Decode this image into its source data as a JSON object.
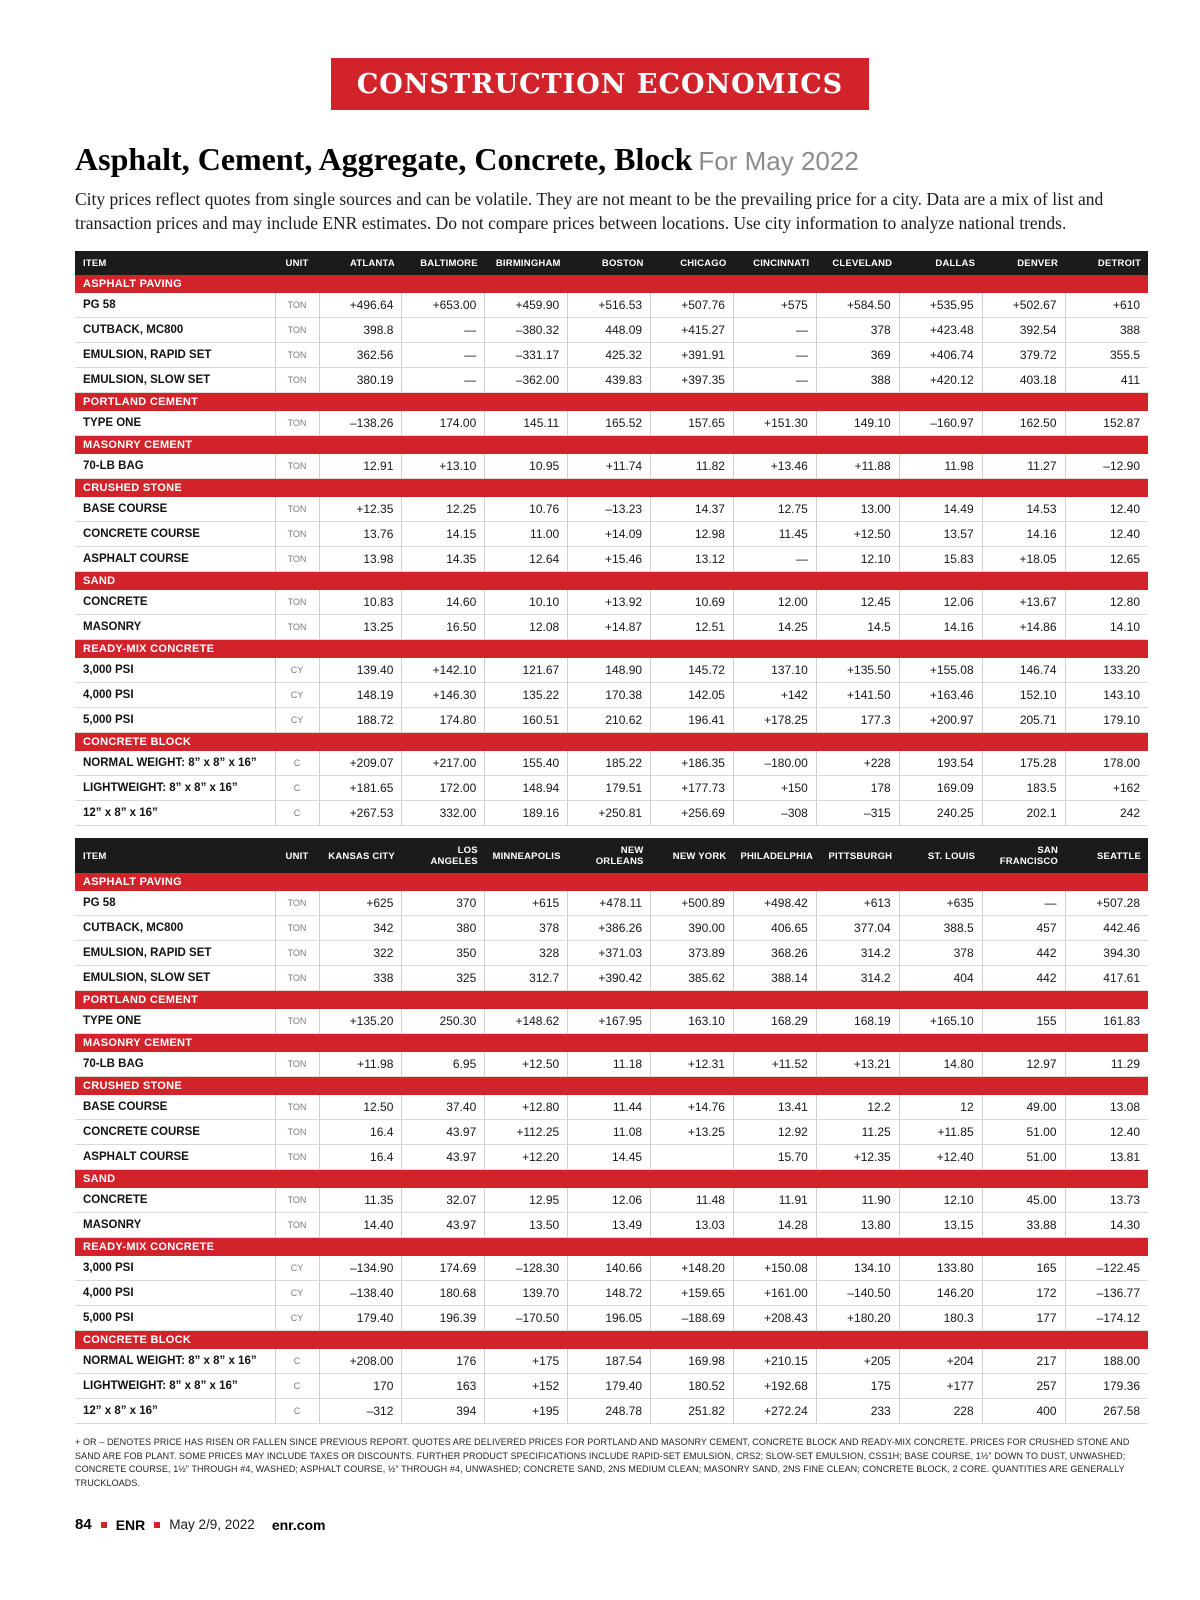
{
  "colors": {
    "accent": "#d2232a",
    "table_header_bg": "#1b1b1b"
  },
  "page": {
    "banner": "CONSTRUCTION ECONOMICS",
    "title": "Asphalt, Cement, Aggregate, Concrete, Block",
    "subtitle": "For May 2022",
    "intro": "City prices reflect quotes from single sources and can be volatile. They are not meant to be the prevailing price for a city. Data are a mix of list and transaction prices and may include ENR estimates. Do not compare prices between locations. Use city information to analyze national trends.",
    "footnote": "+ OR – DENOTES PRICE HAS RISEN OR FALLEN SINCE PREVIOUS REPORT. QUOTES ARE DELIVERED PRICES FOR PORTLAND AND MASONRY CEMENT, CONCRETE BLOCK AND READY-MIX CONCRETE. PRICES FOR CRUSHED STONE AND SAND ARE FOB PLANT. SOME PRICES MAY INCLUDE TAXES OR DISCOUNTS. FURTHER PRODUCT SPECIFICATIONS INCLUDE RAPID-SET EMULSION, CRS2; SLOW-SET EMULSION, CSS1H; BASE COURSE, 1½” DOWN TO DUST, UNWASHED; CONCRETE COURSE, 1½” THROUGH #4, WASHED; ASPHALT COURSE, ½” THROUGH #4, UNWASHED; CONCRETE SAND, 2NS MEDIUM CLEAN; MASONRY SAND, 2NS FINE CLEAN; CONCRETE BLOCK, 2 CORE. QUANTITIES ARE GENERALLY TRUCKLOADS.",
    "footer": {
      "page_number": "84",
      "brand": "ENR",
      "date": "May 2/9, 2022",
      "site": "enr.com"
    }
  },
  "tables": [
    {
      "headers": [
        "ITEM",
        "UNIT",
        "ATLANTA",
        "BALTIMORE",
        "BIRMINGHAM",
        "BOSTON",
        "CHICAGO",
        "CINCINNATI",
        "CLEVELAND",
        "DALLAS",
        "DENVER",
        "DETROIT"
      ],
      "sections": [
        {
          "label": "ASPHALT PAVING",
          "rows": [
            {
              "item": "PG 58",
              "unit": "TON",
              "values": [
                "+496.64",
                "+653.00",
                "+459.90",
                "+516.53",
                "+507.76",
                "+575",
                "+584.50",
                "+535.95",
                "+502.67",
                "+610"
              ]
            },
            {
              "item": "CUTBACK, MC800",
              "unit": "TON",
              "values": [
                "398.8",
                "—",
                "–380.32",
                "448.09",
                "+415.27",
                "—",
                "378",
                "+423.48",
                "392.54",
                "388"
              ]
            },
            {
              "item": "EMULSION, RAPID SET",
              "unit": "TON",
              "values": [
                "362.56",
                "—",
                "–331.17",
                "425.32",
                "+391.91",
                "—",
                "369",
                "+406.74",
                "379.72",
                "355.5"
              ]
            },
            {
              "item": "EMULSION, SLOW SET",
              "unit": "TON",
              "values": [
                "380.19",
                "—",
                "–362.00",
                "439.83",
                "+397.35",
                "—",
                "388",
                "+420.12",
                "403.18",
                "411"
              ]
            }
          ]
        },
        {
          "label": "PORTLAND CEMENT",
          "rows": [
            {
              "item": "TYPE ONE",
              "unit": "TON",
              "values": [
                "–138.26",
                "174.00",
                "145.11",
                "165.52",
                "157.65",
                "+151.30",
                "149.10",
                "–160.97",
                "162.50",
                "152.87"
              ]
            }
          ]
        },
        {
          "label": "MASONRY CEMENT",
          "rows": [
            {
              "item": "70-LB BAG",
              "unit": "TON",
              "values": [
                "12.91",
                "+13.10",
                "10.95",
                "+11.74",
                "11.82",
                "+13.46",
                "+11.88",
                "11.98",
                "11.27",
                "–12.90"
              ]
            }
          ]
        },
        {
          "label": "CRUSHED STONE",
          "rows": [
            {
              "item": "BASE COURSE",
              "unit": "TON",
              "values": [
                "+12.35",
                "12.25",
                "10.76",
                "–13.23",
                "14.37",
                "12.75",
                "13.00",
                "14.49",
                "14.53",
                "12.40"
              ]
            },
            {
              "item": "CONCRETE COURSE",
              "unit": "TON",
              "values": [
                "13.76",
                "14.15",
                "11.00",
                "+14.09",
                "12.98",
                "11.45",
                "+12.50",
                "13.57",
                "14.16",
                "12.40"
              ]
            },
            {
              "item": "ASPHALT COURSE",
              "unit": "TON",
              "values": [
                "13.98",
                "14.35",
                "12.64",
                "+15.46",
                "13.12",
                "—",
                "12.10",
                "15.83",
                "+18.05",
                "12.65"
              ]
            }
          ]
        },
        {
          "label": "SAND",
          "rows": [
            {
              "item": "CONCRETE",
              "unit": "TON",
              "values": [
                "10.83",
                "14.60",
                "10.10",
                "+13.92",
                "10.69",
                "12.00",
                "12.45",
                "12.06",
                "+13.67",
                "12.80"
              ]
            },
            {
              "item": "MASONRY",
              "unit": "TON",
              "values": [
                "13.25",
                "16.50",
                "12.08",
                "+14.87",
                "12.51",
                "14.25",
                "14.5",
                "14.16",
                "+14.86",
                "14.10"
              ]
            }
          ]
        },
        {
          "label": "READY-MIX CONCRETE",
          "rows": [
            {
              "item": "3,000 PSI",
              "unit": "CY",
              "values": [
                "139.40",
                "+142.10",
                "121.67",
                "148.90",
                "145.72",
                "137.10",
                "+135.50",
                "+155.08",
                "146.74",
                "133.20"
              ]
            },
            {
              "item": "4,000 PSI",
              "unit": "CY",
              "values": [
                "148.19",
                "+146.30",
                "135.22",
                "170.38",
                "142.05",
                "+142",
                "+141.50",
                "+163.46",
                "152.10",
                "143.10"
              ]
            },
            {
              "item": "5,000 PSI",
              "unit": "CY",
              "values": [
                "188.72",
                "174.80",
                "160.51",
                "210.62",
                "196.41",
                "+178.25",
                "177.3",
                "+200.97",
                "205.71",
                "179.10"
              ]
            }
          ]
        },
        {
          "label": "CONCRETE BLOCK",
          "rows": [
            {
              "item": "NORMAL WEIGHT: 8” x 8” x 16”",
              "unit": "C",
              "values": [
                "+209.07",
                "+217.00",
                "155.40",
                "185.22",
                "+186.35",
                "–180.00",
                "+228",
                "193.54",
                "175.28",
                "178.00"
              ]
            },
            {
              "item": "LIGHTWEIGHT: 8” x 8” x 16”",
              "unit": "C",
              "values": [
                "+181.65",
                "172.00",
                "148.94",
                "179.51",
                "+177.73",
                "+150",
                "178",
                "169.09",
                "183.5",
                "+162"
              ]
            },
            {
              "item": "12” x 8” x 16”",
              "unit": "C",
              "values": [
                "+267.53",
                "332.00",
                "189.16",
                "+250.81",
                "+256.69",
                "–308",
                "–315",
                "240.25",
                "202.1",
                "242"
              ]
            }
          ]
        }
      ]
    },
    {
      "headers": [
        "ITEM",
        "UNIT",
        "KANSAS CITY",
        "LOS ANGELES",
        "MINNEAPOLIS",
        "NEW ORLEANS",
        "NEW YORK",
        "PHILADELPHIA",
        "PITTSBURGH",
        "ST. LOUIS",
        "SAN FRANCISCO",
        "SEATTLE"
      ],
      "sections": [
        {
          "label": "ASPHALT PAVING",
          "rows": [
            {
              "item": "PG 58",
              "unit": "TON",
              "values": [
                "+625",
                "370",
                "+615",
                "+478.11",
                "+500.89",
                "+498.42",
                "+613",
                "+635",
                "—",
                "+507.28"
              ]
            },
            {
              "item": "CUTBACK, MC800",
              "unit": "TON",
              "values": [
                "342",
                "380",
                "378",
                "+386.26",
                "390.00",
                "406.65",
                "377.04",
                "388.5",
                "457",
                "442.46"
              ]
            },
            {
              "item": "EMULSION, RAPID SET",
              "unit": "TON",
              "values": [
                "322",
                "350",
                "328",
                "+371.03",
                "373.89",
                "368.26",
                "314.2",
                "378",
                "442",
                "394.30"
              ]
            },
            {
              "item": "EMULSION, SLOW SET",
              "unit": "TON",
              "values": [
                "338",
                "325",
                "312.7",
                "+390.42",
                "385.62",
                "388.14",
                "314.2",
                "404",
                "442",
                "417.61"
              ]
            }
          ]
        },
        {
          "label": "PORTLAND CEMENT",
          "rows": [
            {
              "item": "TYPE ONE",
              "unit": "TON",
              "values": [
                "+135.20",
                "250.30",
                "+148.62",
                "+167.95",
                "163.10",
                "168.29",
                "168.19",
                "+165.10",
                "155",
                "161.83"
              ]
            }
          ]
        },
        {
          "label": "MASONRY CEMENT",
          "rows": [
            {
              "item": "70-LB BAG",
              "unit": "TON",
              "values": [
                "+11.98",
                "6.95",
                "+12.50",
                "11.18",
                "+12.31",
                "+11.52",
                "+13.21",
                "14.80",
                "12.97",
                "11.29"
              ]
            }
          ]
        },
        {
          "label": "CRUSHED STONE",
          "rows": [
            {
              "item": "BASE COURSE",
              "unit": "TON",
              "values": [
                "12.50",
                "37.40",
                "+12.80",
                "11.44",
                "+14.76",
                "13.41",
                "12.2",
                "12",
                "49.00",
                "13.08"
              ]
            },
            {
              "item": "CONCRETE COURSE",
              "unit": "TON",
              "values": [
                "16.4",
                "43.97",
                "+112.25",
                "11.08",
                "+13.25",
                "12.92",
                "11.25",
                "+11.85",
                "51.00",
                "12.40"
              ]
            },
            {
              "item": "ASPHALT COURSE",
              "unit": "TON",
              "values": [
                "16.4",
                "43.97",
                "+12.20",
                "14.45",
                "",
                "15.70",
                "+12.35",
                "+12.40",
                "51.00",
                "13.81"
              ]
            }
          ]
        },
        {
          "label": "SAND",
          "rows": [
            {
              "item": "CONCRETE",
              "unit": "TON",
              "values": [
                "11.35",
                "32.07",
                "12.95",
                "12.06",
                "11.48",
                "11.91",
                "11.90",
                "12.10",
                "45.00",
                "13.73"
              ]
            },
            {
              "item": "MASONRY",
              "unit": "TON",
              "values": [
                "14.40",
                "43.97",
                "13.50",
                "13.49",
                "13.03",
                "14.28",
                "13.80",
                "13.15",
                "33.88",
                "14.30"
              ]
            }
          ]
        },
        {
          "label": "READY-MIX CONCRETE",
          "rows": [
            {
              "item": "3,000 PSI",
              "unit": "CY",
              "values": [
                "–134.90",
                "174.69",
                "–128.30",
                "140.66",
                "+148.20",
                "+150.08",
                "134.10",
                "133.80",
                "165",
                "–122.45"
              ]
            },
            {
              "item": "4,000 PSI",
              "unit": "CY",
              "values": [
                "–138.40",
                "180.68",
                "139.70",
                "148.72",
                "+159.65",
                "+161.00",
                "–140.50",
                "146.20",
                "172",
                "–136.77"
              ]
            },
            {
              "item": "5,000 PSI",
              "unit": "CY",
              "values": [
                "179.40",
                "196.39",
                "–170.50",
                "196.05",
                "–188.69",
                "+208.43",
                "+180.20",
                "180.3",
                "177",
                "–174.12"
              ]
            }
          ]
        },
        {
          "label": "CONCRETE BLOCK",
          "rows": [
            {
              "item": "NORMAL WEIGHT: 8” x 8” x 16”",
              "unit": "C",
              "values": [
                "+208.00",
                "176",
                "+175",
                "187.54",
                "169.98",
                "+210.15",
                "+205",
                "+204",
                "217",
                "188.00"
              ]
            },
            {
              "item": "LIGHTWEIGHT: 8” x 8” x 16”",
              "unit": "C",
              "values": [
                "170",
                "163",
                "+152",
                "179.40",
                "180.52",
                "+192.68",
                "175",
                "+177",
                "257",
                "179.36"
              ]
            },
            {
              "item": "12” x 8” x 16”",
              "unit": "C",
              "values": [
                "–312",
                "394",
                "+195",
                "248.78",
                "251.82",
                "+272.24",
                "233",
                "228",
                "400",
                "267.58"
              ]
            }
          ]
        }
      ]
    }
  ]
}
